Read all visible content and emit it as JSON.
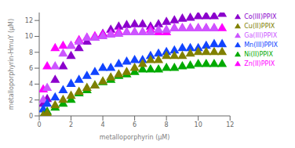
{
  "chart_data": {
    "type": "scatter",
    "xlabel": "metalloporphyrin (μM)",
    "ylabel": "metalloporphyrin-HmuY (μM)",
    "xlim": [
      0,
      12
    ],
    "ylim": [
      0,
      13
    ],
    "xticks": [
      0,
      2,
      4,
      6,
      8,
      10,
      12
    ],
    "yticks": [
      0,
      2,
      4,
      6,
      8,
      10,
      12
    ],
    "grid": false,
    "legend": "right",
    "marker": "triangle",
    "series": [
      {
        "name": "Co(III)PPIX",
        "color": "#8B00CC",
        "x": [
          0.25,
          0.5,
          1.0,
          1.5,
          2.0,
          2.5,
          3.0,
          3.5,
          4.0,
          4.5,
          5.0,
          5.5,
          6.0,
          6.5,
          7.0,
          7.5,
          8.0,
          8.5,
          9.0,
          9.5,
          10.0,
          10.5,
          11.0,
          11.5
        ],
        "values": [
          1.5,
          2.1,
          4.5,
          6.2,
          7.5,
          8.5,
          9.3,
          9.8,
          10.3,
          10.8,
          11.2,
          11.4,
          11.5,
          11.5,
          11.2,
          11.5,
          11.8,
          12.0,
          12.2,
          12.3,
          12.5,
          12.5,
          12.5,
          12.8
        ]
      },
      {
        "name": "Zn(II)PPIX",
        "color": "#FF00FF",
        "x": [
          0.25,
          0.5,
          1.0,
          1.5,
          2.0,
          2.5,
          3.0,
          3.5,
          4.0,
          4.5,
          5.0,
          5.5,
          6.0,
          6.5,
          7.0,
          7.5,
          8.0,
          8.5,
          9.0,
          9.5,
          10.0,
          10.5,
          11.0,
          11.5
        ],
        "values": [
          3.3,
          6.2,
          8.5,
          8.8,
          8.8,
          9.5,
          9.8,
          10.0,
          10.2,
          10.3,
          10.5,
          10.5,
          10.5,
          10.5,
          10.8,
          10.5,
          10.5,
          11.0,
          11.0,
          11.0,
          11.0,
          11.0,
          11.0,
          11.0
        ]
      },
      {
        "name": "Ga(III)PPIX",
        "color": "#CC55FF",
        "x": [
          0.25,
          0.5,
          1.0,
          1.5,
          2.0,
          2.5,
          3.0,
          3.5,
          4.0,
          4.5,
          5.0,
          5.5,
          6.0,
          6.5,
          7.0,
          7.5,
          8.0,
          8.5,
          9.0,
          9.5,
          10.0,
          10.5,
          11.0
        ],
        "values": [
          2.0,
          3.5,
          6.2,
          7.8,
          8.8,
          9.3,
          9.8,
          9.8,
          10.0,
          10.2,
          10.3,
          10.5,
          10.5,
          10.5,
          10.5,
          10.8,
          10.8,
          11.0,
          11.0,
          11.0,
          11.0,
          11.0,
          11.0
        ]
      },
      {
        "name": "Mn(III)PPIX",
        "color": "#1144FF",
        "x": [
          0.25,
          0.5,
          1.0,
          1.5,
          2.0,
          2.5,
          3.0,
          3.5,
          4.0,
          4.5,
          5.0,
          5.5,
          6.0,
          6.5,
          7.0,
          7.5,
          8.0,
          8.5,
          9.0,
          9.5,
          10.0,
          10.5,
          11.0,
          11.5
        ],
        "values": [
          0.8,
          1.5,
          2.3,
          3.2,
          4.0,
          4.5,
          5.0,
          5.5,
          6.0,
          6.0,
          6.5,
          6.8,
          7.0,
          7.0,
          7.5,
          7.8,
          8.0,
          8.2,
          8.5,
          8.5,
          8.5,
          8.8,
          9.0,
          9.0
        ]
      },
      {
        "name": "Ni(II)PPIX",
        "color": "#00AA00",
        "x": [
          0.25,
          0.5,
          1.0,
          1.5,
          2.0,
          2.5,
          3.0,
          3.5,
          4.0,
          4.5,
          5.0,
          5.5,
          6.0,
          6.5,
          7.0,
          7.5,
          8.0,
          8.5,
          9.0,
          9.5,
          10.0,
          10.5,
          11.0,
          11.5
        ],
        "values": [
          0.0,
          0.5,
          1.0,
          1.5,
          2.0,
          2.8,
          3.2,
          3.8,
          4.2,
          4.5,
          5.0,
          5.2,
          5.5,
          5.8,
          5.8,
          5.8,
          6.0,
          6.0,
          6.2,
          6.3,
          6.5,
          6.5,
          6.5,
          6.5
        ]
      },
      {
        "name": "Cu(II)PPIX",
        "color": "#808000",
        "x": [
          0.25,
          0.5,
          1.0,
          1.5,
          2.0,
          2.5,
          3.0,
          3.5,
          4.0,
          4.5,
          5.0,
          5.5,
          6.0,
          6.5,
          7.0,
          7.5,
          8.0,
          8.5,
          9.0,
          9.5,
          10.0,
          10.5,
          11.0,
          11.5
        ],
        "values": [
          0.0,
          0.3,
          1.3,
          2.0,
          2.5,
          3.0,
          3.5,
          3.8,
          4.3,
          4.8,
          5.2,
          5.5,
          6.0,
          6.5,
          7.0,
          7.0,
          7.5,
          7.5,
          7.5,
          7.8,
          8.0,
          8.0,
          8.0,
          8.0
        ]
      }
    ]
  }
}
